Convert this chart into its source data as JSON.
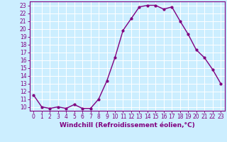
{
  "x": [
    0,
    1,
    2,
    3,
    4,
    5,
    6,
    7,
    8,
    9,
    10,
    11,
    12,
    13,
    14,
    15,
    16,
    17,
    18,
    19,
    20,
    21,
    22,
    23
  ],
  "y": [
    11.5,
    10.0,
    9.8,
    10.0,
    9.8,
    10.3,
    9.8,
    9.8,
    11.0,
    13.3,
    16.3,
    19.8,
    21.3,
    22.8,
    23.0,
    23.0,
    22.5,
    22.8,
    21.0,
    19.3,
    17.3,
    16.3,
    14.8,
    13.0
  ],
  "line_color": "#800080",
  "marker": "o",
  "marker_size": 2.0,
  "linewidth": 1.0,
  "xlabel": "Windchill (Refroidissement éolien,°C)",
  "xlabel_fontsize": 6.5,
  "ylabel_ticks": [
    10,
    11,
    12,
    13,
    14,
    15,
    16,
    17,
    18,
    19,
    20,
    21,
    22,
    23
  ],
  "xticks": [
    0,
    1,
    2,
    3,
    4,
    5,
    6,
    7,
    8,
    9,
    10,
    11,
    12,
    13,
    14,
    15,
    16,
    17,
    18,
    19,
    20,
    21,
    22,
    23
  ],
  "xlim": [
    -0.5,
    23.5
  ],
  "ylim": [
    9.5,
    23.5
  ],
  "background_color": "#cceeff",
  "grid_color": "#ffffff",
  "tick_color": "#800080",
  "label_color": "#800080",
  "tick_fontsize": 5.5
}
